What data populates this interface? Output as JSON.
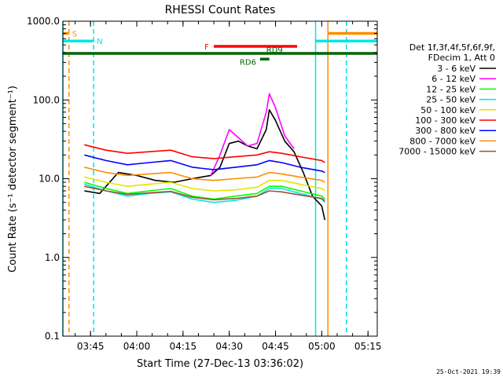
{
  "chart_data": {
    "type": "line",
    "title": "RHESSI Count Rates",
    "xlabel": "Start Time (27-Dec-13 03:36:02)",
    "ylabel": "Count Rate (s⁻¹ detector segment⁻¹)",
    "xlim": [
      "03:36:02",
      "05:18:00"
    ],
    "ylim": [
      0.1,
      1000
    ],
    "y_scale": "log",
    "x_ticks": [
      "03:45",
      "04:00",
      "04:15",
      "04:30",
      "04:45",
      "05:00",
      "05:15"
    ],
    "y_ticks": [
      "0.1",
      "1.0",
      "10.0",
      "100.0",
      "1000.0"
    ],
    "legend_header": [
      "Det 1f,3f,4f,5f,6f,9f,",
      "FDecim 1, Att 0"
    ],
    "legend_position": "right",
    "series": [
      {
        "name": "3 - 6 keV",
        "color": "#000000",
        "x": [
          "03:43",
          "03:48",
          "03:54",
          "04:00",
          "04:06",
          "04:12",
          "04:18",
          "04:24",
          "04:27",
          "04:30",
          "04:33",
          "04:36",
          "04:39",
          "04:42",
          "04:43",
          "04:45",
          "04:48",
          "04:51",
          "04:54",
          "04:57",
          "05:00",
          "05:01"
        ],
        "y": [
          7,
          6.5,
          12,
          11,
          9.5,
          9,
          10,
          11,
          14,
          28,
          30,
          26,
          24,
          42,
          75,
          55,
          30,
          22,
          12,
          6,
          4.5,
          3
        ]
      },
      {
        "name": "6 - 12 keV",
        "color": "#ff00ff",
        "x": [
          "04:24",
          "04:27",
          "04:30",
          "04:33",
          "04:36",
          "04:39",
          "04:42",
          "04:43",
          "04:45",
          "04:48",
          "04:51"
        ],
        "y": [
          11,
          20,
          42,
          33,
          26,
          28,
          70,
          120,
          80,
          35,
          24
        ]
      },
      {
        "name": "12 - 25 keV",
        "color": "#00ff00",
        "x": [
          "03:43",
          "03:50",
          "03:57",
          "04:04",
          "04:11",
          "04:18",
          "04:25",
          "04:32",
          "04:39",
          "04:43",
          "04:47",
          "04:53",
          "05:00",
          "05:01"
        ],
        "y": [
          9,
          7.5,
          6.5,
          7,
          7.5,
          6,
          5.5,
          6,
          6.5,
          8,
          8,
          7,
          6,
          5.5
        ]
      },
      {
        "name": "25 - 50 keV",
        "color": "#00e5e5",
        "x": [
          "03:43",
          "03:50",
          "03:57",
          "04:04",
          "04:11",
          "04:18",
          "04:25",
          "04:32",
          "04:39",
          "04:43",
          "04:47",
          "04:53",
          "05:00",
          "05:01"
        ],
        "y": [
          8.5,
          7,
          6,
          6.5,
          6.8,
          5.5,
          5,
          5.3,
          6,
          7.5,
          7.5,
          6.5,
          5.5,
          5
        ]
      },
      {
        "name": "50 - 100 keV",
        "color": "#e5e500",
        "x": [
          "03:43",
          "03:50",
          "03:57",
          "04:04",
          "04:11",
          "04:18",
          "04:25",
          "04:32",
          "04:39",
          "04:43",
          "04:47",
          "04:53",
          "05:00",
          "05:01"
        ],
        "y": [
          10.5,
          9,
          8,
          8.5,
          9,
          7.5,
          7,
          7.2,
          7.8,
          9.5,
          9.5,
          8.5,
          7.5,
          7
        ]
      },
      {
        "name": "100 - 300 keV",
        "color": "#ff0000",
        "x": [
          "03:43",
          "03:50",
          "03:57",
          "04:04",
          "04:11",
          "04:18",
          "04:25",
          "04:32",
          "04:39",
          "04:43",
          "04:47",
          "04:53",
          "05:00",
          "05:01"
        ],
        "y": [
          27,
          23,
          21,
          22,
          23,
          19,
          18,
          19,
          20,
          22,
          21,
          19,
          17,
          16
        ]
      },
      {
        "name": "300 - 800 keV",
        "color": "#0000ff",
        "x": [
          "03:43",
          "03:50",
          "03:57",
          "04:04",
          "04:11",
          "04:18",
          "04:25",
          "04:32",
          "04:39",
          "04:43",
          "04:47",
          "04:53",
          "05:00",
          "05:01"
        ],
        "y": [
          20,
          17,
          15,
          16,
          17,
          14,
          13,
          14,
          15,
          17,
          16,
          14,
          12.5,
          12
        ]
      },
      {
        "name": "800 - 7000 keV",
        "color": "#ff8c00",
        "x": [
          "03:43",
          "03:50",
          "03:57",
          "04:04",
          "04:11",
          "04:18",
          "04:25",
          "04:32",
          "04:39",
          "04:43",
          "04:47",
          "04:53",
          "05:00",
          "05:01"
        ],
        "y": [
          14,
          12,
          11,
          11.5,
          12,
          10,
          9.5,
          10,
          10.5,
          12,
          11.5,
          10.5,
          9.5,
          9
        ]
      },
      {
        "name": "7000 - 15000 keV",
        "color": "#a0522d",
        "x": [
          "03:43",
          "03:50",
          "03:57",
          "04:04",
          "04:11",
          "04:18",
          "04:25",
          "04:32",
          "04:39",
          "04:43",
          "04:47",
          "04:53",
          "05:00",
          "05:01"
        ],
        "y": [
          8,
          7,
          6.3,
          6.6,
          6.9,
          5.8,
          5.4,
          5.6,
          6,
          7,
          6.8,
          6.2,
          5.6,
          5.2
        ]
      }
    ],
    "annotation_bars": [
      {
        "label": "S",
        "color": "#ff8c00",
        "x": [
          "03:36:02",
          "03:38"
        ],
        "y": 700
      },
      {
        "label": "N",
        "color": "#00e5e5",
        "x": [
          "03:36:02",
          "03:46"
        ],
        "y": 560
      },
      {
        "label": "F",
        "color": "#ff0000",
        "x": [
          "04:25",
          "04:52"
        ],
        "y": 480
      },
      {
        "label": "RD9",
        "color": "#006400",
        "x": [
          "03:36:02",
          "05:18"
        ],
        "y": 390
      },
      {
        "label": "RD6",
        "color": "#006400",
        "x": [
          "04:40",
          "04:43"
        ],
        "y": 330
      },
      {
        "label": "",
        "color": "#00e5e5",
        "x": [
          "04:58",
          "05:18"
        ],
        "y": 560
      },
      {
        "label": "",
        "color": "#ff8c00",
        "x": [
          "05:02",
          "05:18"
        ],
        "y": 700
      }
    ],
    "vertical_markers": [
      {
        "color": "#00e5e5",
        "style": "solid",
        "x": "03:36:02"
      },
      {
        "color": "#ff8c00",
        "style": "dashed",
        "x": "03:38"
      },
      {
        "color": "#00e5e5",
        "style": "dashed",
        "x": "03:46"
      },
      {
        "color": "#00e5e5",
        "style": "solid",
        "x": "04:58"
      },
      {
        "color": "#ff8c00",
        "style": "solid",
        "x": "05:02"
      },
      {
        "color": "#ff8c00",
        "style": "dashed",
        "x": "05:08"
      },
      {
        "color": "#00e5e5",
        "style": "dashed",
        "x": "05:08"
      }
    ],
    "grid": false
  },
  "footer": {
    "timestamp": "25-Oct-2021 19:39"
  }
}
